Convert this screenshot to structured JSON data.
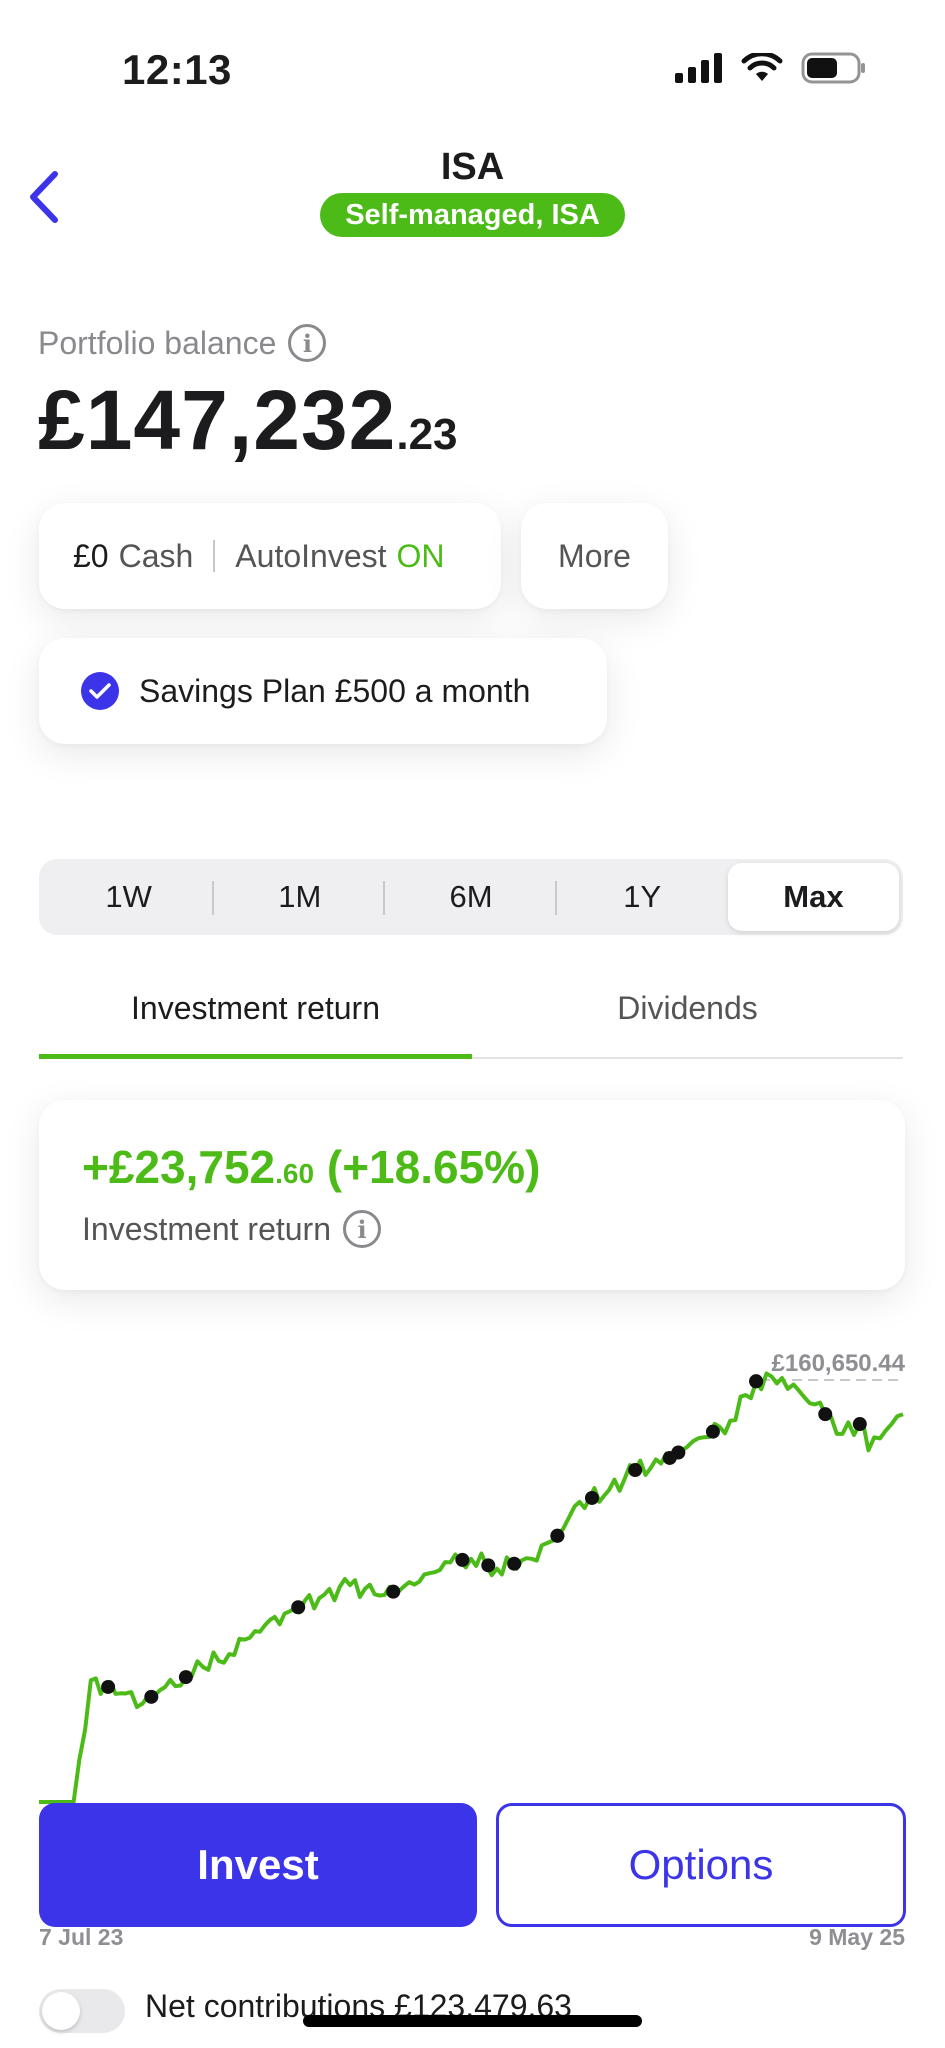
{
  "status_bar": {
    "time": "12:13",
    "icons": [
      "signal-icon",
      "wifi-icon",
      "battery-icon"
    ]
  },
  "header": {
    "back_icon": "chevron-left-icon",
    "title": "ISA",
    "badge": "Self-managed, ISA"
  },
  "balance": {
    "label": "Portfolio balance",
    "value_main": "£147,232",
    "value_decimal": ".23"
  },
  "summary": {
    "cash": "£0",
    "cash_label": "Cash",
    "autoinvest_label": "AutoInvest",
    "autoinvest_state": "ON",
    "more_label": "More",
    "savings_plan": "Savings Plan £500 a month"
  },
  "periods": {
    "items": [
      "1W",
      "1M",
      "6M",
      "1Y",
      "Max"
    ],
    "selected": "Max"
  },
  "tabs": {
    "investment_return": "Investment return",
    "dividends": "Dividends",
    "active": "Investment return"
  },
  "return_card": {
    "value_main": "+£23,752",
    "value_decimal": ".60",
    "percent": "(+18.65%)",
    "label": "Investment return"
  },
  "chart_data": {
    "type": "line",
    "peak_label": "£160,650.44",
    "x_start_label": "7 Jul 23",
    "x_end_label": "9 May 25",
    "line_color": "#4cbb17",
    "marker_color": "#111111",
    "x": [
      0,
      4,
      6,
      10,
      12,
      14,
      17,
      19,
      22,
      25,
      29,
      33,
      36,
      40,
      44,
      47,
      50,
      53,
      57,
      60,
      62,
      66,
      69,
      72,
      75,
      77,
      80,
      83,
      86,
      88,
      91,
      93,
      95,
      96,
      98,
      100
    ],
    "y": [
      0,
      0,
      37,
      33,
      30,
      34,
      38,
      41,
      45,
      52,
      58,
      63,
      66,
      63,
      67,
      73,
      74,
      71,
      74,
      81,
      90,
      95,
      101,
      103,
      108,
      111,
      116,
      128,
      129,
      125,
      118,
      112,
      115,
      107,
      113,
      118
    ],
    "markers_x": [
      8,
      13,
      17,
      30,
      41,
      49,
      52,
      55,
      60,
      60,
      64,
      69,
      73,
      74,
      78,
      83,
      83,
      91,
      95
    ],
    "unit": "£ thousands (relative scale)"
  },
  "actions": {
    "invest": "Invest",
    "options": "Options"
  },
  "footer": {
    "net_contributions": "Net contributions £123,479.63"
  }
}
